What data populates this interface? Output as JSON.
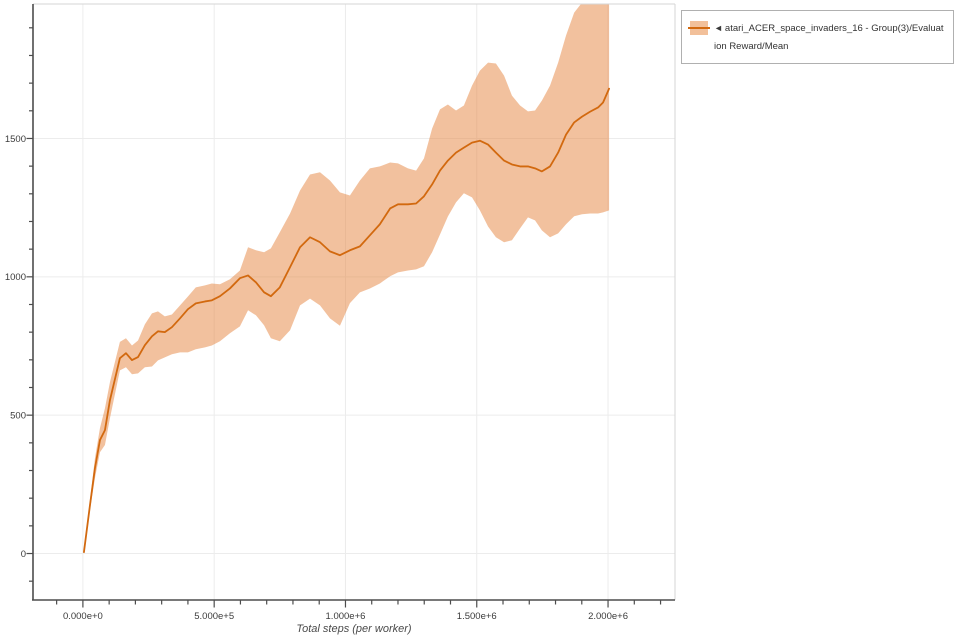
{
  "legend": {
    "collapse_marker": "◄",
    "label": "atari_ACER_space_invaders_16 - Group(3)/Evaluation Reward/Mean"
  },
  "colors": {
    "line": "#d2690f",
    "band": "#e5833d",
    "band_opacity": 0.5,
    "grid": "#ececec",
    "spine_dark": "#4d4d4d",
    "spine_light": "#d6d6d6",
    "tick": "#4d4d4d",
    "tick_label": "#3b3b3b",
    "axis_title": "#4a4a4a"
  },
  "chart_data": {
    "type": "line",
    "title": "",
    "xlabel": "Total steps (per worker)",
    "ylabel": "",
    "grid": true,
    "legend_position": "top-right",
    "xlim": [
      -190000,
      2255000
    ],
    "ylim": [
      -168,
      1986
    ],
    "x_ticks": [
      {
        "value": 0,
        "label": "0.000e+0"
      },
      {
        "value": 500000,
        "label": "5.000e+5"
      },
      {
        "value": 1000000,
        "label": "1.000e+6"
      },
      {
        "value": 1500000,
        "label": "1.500e+6"
      },
      {
        "value": 2000000,
        "label": "2.000e+6"
      }
    ],
    "x_minor_step": 100000,
    "x_minor_range": [
      -100000,
      2200000
    ],
    "y_ticks": [
      {
        "value": 0,
        "label": "0"
      },
      {
        "value": 500,
        "label": "500"
      },
      {
        "value": 1000,
        "label": "1000"
      },
      {
        "value": 1500,
        "label": "1500"
      }
    ],
    "y_minor_step": 100,
    "y_minor_range": [
      -100,
      1900
    ],
    "series": [
      {
        "name": "atari_ACER_space_invaders_16 - Group(3)/Evaluation Reward/Mean",
        "steps": [
          4000,
          27000,
          46000,
          65000,
          84000,
          103000,
          141000,
          164000,
          187000,
          210000,
          236000,
          263000,
          286000,
          312000,
          339000,
          370000,
          400000,
          430000,
          465000,
          491000,
          522000,
          560000,
          598000,
          629000,
          659000,
          690000,
          716000,
          750000,
          789000,
          827000,
          865000,
          903000,
          941000,
          979000,
          1017000,
          1055000,
          1093000,
          1131000,
          1170000,
          1200000,
          1238000,
          1269000,
          1299000,
          1330000,
          1360000,
          1390000,
          1421000,
          1451000,
          1482000,
          1512000,
          1543000,
          1573000,
          1604000,
          1634000,
          1665000,
          1695000,
          1722000,
          1748000,
          1779000,
          1810000,
          1840000,
          1871000,
          1901000,
          1932000,
          1962000,
          1981000,
          2004000
        ],
        "mean": [
          5,
          175,
          309,
          410,
          446,
          554,
          706,
          724,
          699,
          710,
          753,
          785,
          803,
          800,
          818,
          850,
          883,
          904,
          911,
          915,
          930,
          958,
          995,
          1005,
          980,
          944,
          930,
          962,
          1035,
          1107,
          1143,
          1125,
          1092,
          1078,
          1096,
          1110,
          1150,
          1190,
          1247,
          1262,
          1262,
          1265,
          1291,
          1334,
          1384,
          1420,
          1449,
          1467,
          1485,
          1492,
          1478,
          1449,
          1420,
          1406,
          1399,
          1399,
          1392,
          1381,
          1399,
          1449,
          1514,
          1558,
          1579,
          1597,
          1612,
          1630,
          1680
        ],
        "upper": [
          5,
          193,
          345,
          453,
          525,
          619,
          765,
          778,
          752,
          770,
          828,
          868,
          875,
          857,
          864,
          897,
          929,
          962,
          969,
          976,
          973,
          991,
          1023,
          1107,
          1096,
          1089,
          1103,
          1161,
          1229,
          1312,
          1370,
          1378,
          1348,
          1305,
          1294,
          1348,
          1392,
          1399,
          1413,
          1410,
          1392,
          1384,
          1428,
          1536,
          1605,
          1623,
          1601,
          1619,
          1691,
          1745,
          1774,
          1771,
          1727,
          1655,
          1619,
          1598,
          1601,
          1637,
          1691,
          1774,
          1872,
          1955,
          1991,
          2020,
          2030,
          2030,
          2020
        ],
        "lower": [
          5,
          157,
          273,
          366,
          392,
          489,
          662,
          673,
          648,
          651,
          673,
          676,
          698,
          709,
          720,
          727,
          727,
          738,
          745,
          752,
          767,
          796,
          821,
          879,
          861,
          825,
          778,
          767,
          807,
          897,
          921,
          897,
          850,
          823,
          905,
          944,
          958,
          976,
          1002,
          1016,
          1023,
          1027,
          1038,
          1089,
          1153,
          1218,
          1269,
          1302,
          1287,
          1240,
          1182,
          1143,
          1125,
          1132,
          1175,
          1215,
          1204,
          1168,
          1143,
          1157,
          1190,
          1219,
          1226,
          1229,
          1229,
          1233,
          1240
        ]
      }
    ]
  }
}
